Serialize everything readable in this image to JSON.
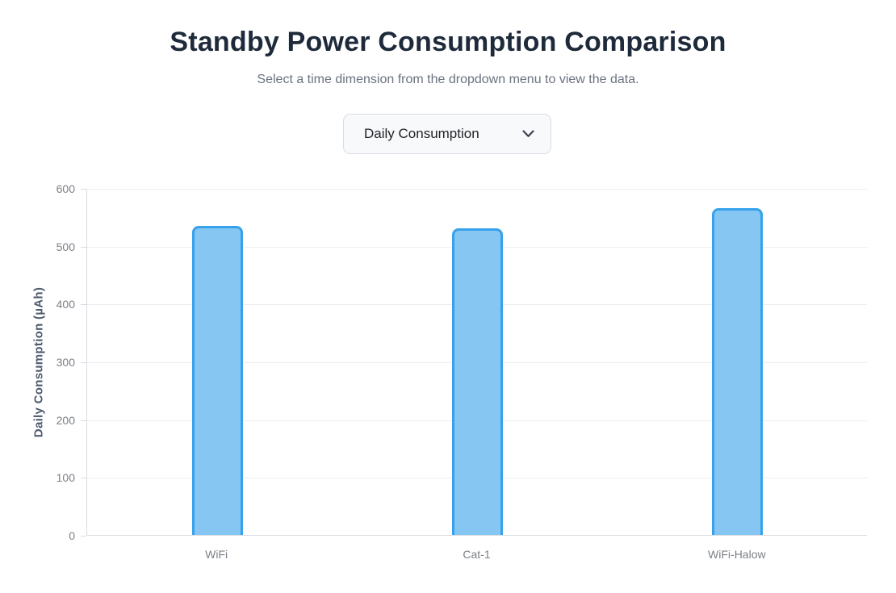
{
  "page": {
    "title": "Standby Power Consumption Comparison",
    "subtitle": "Select a time dimension from the dropdown menu to view the data."
  },
  "dropdown": {
    "selected": "Daily Consumption",
    "icon": "chevron-down-icon"
  },
  "chart_data": {
    "type": "bar",
    "categories": [
      "WiFi",
      "Cat-1",
      "WiFi-Halow"
    ],
    "values": [
      535,
      530,
      565
    ],
    "title": "",
    "xlabel": "",
    "ylabel": "Daily Consumption (µAh)",
    "ylim": [
      0,
      600
    ],
    "ytick_step": 100,
    "yticks": [
      "0",
      "100",
      "200",
      "300",
      "400",
      "500",
      "600"
    ],
    "grid": true,
    "legend": "none",
    "bar_fill_color": "#85C6F2",
    "bar_border_color": "#36A2EB"
  },
  "colors": {
    "accent_blue": "#36A2EB",
    "title_text": "#1e2a3b",
    "subtitle_text": "#6b7280",
    "axis_text": "#7b7f87",
    "axis_title_text": "#4e5b6e",
    "gridline": "#eceef3",
    "axis_line": "#d9dbe1",
    "dropdown_bg": "#f8f9fb",
    "dropdown_border": "#d8dce3"
  }
}
